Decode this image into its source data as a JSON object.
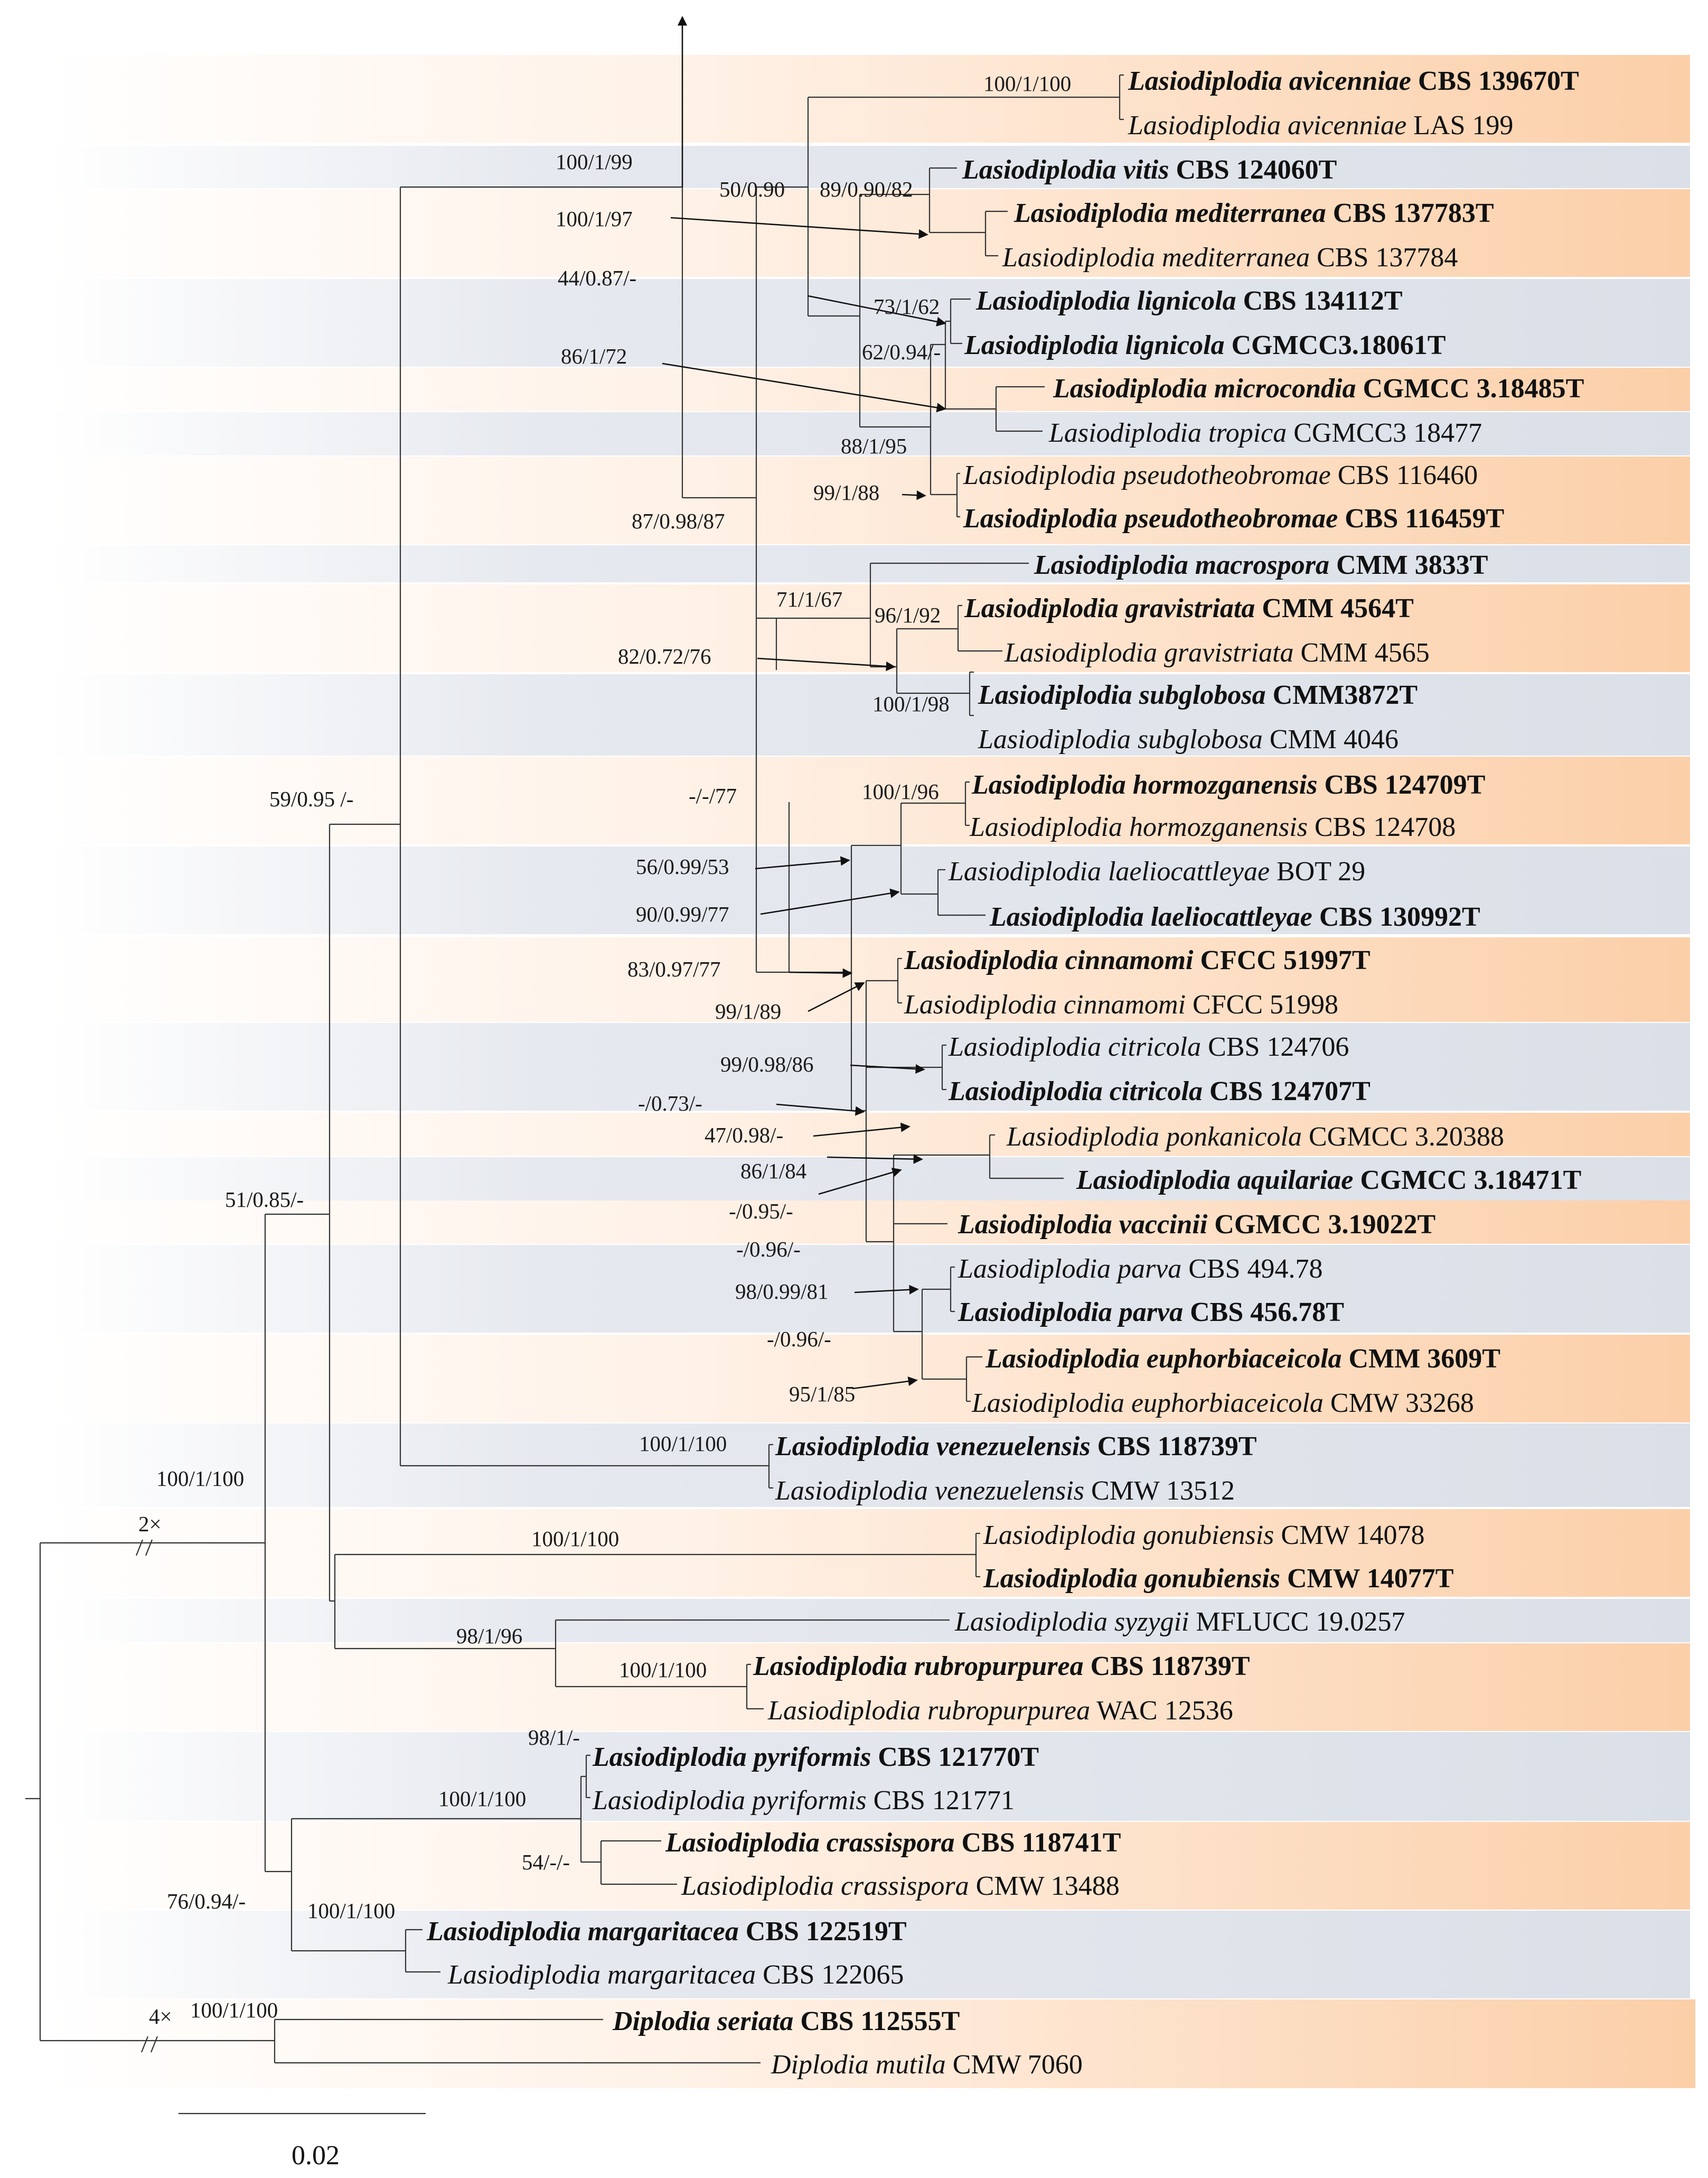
{
  "taxa": [
    {
      "genus": "Lasiodiplodia",
      "species": "avicenniae",
      "strain": "CBS 139670T",
      "type": true
    },
    {
      "genus": "Lasiodiplodia",
      "species": "avicenniae",
      "strain": "LAS 199",
      "type": false
    },
    {
      "genus": "Lasiodiplodia",
      "species": "vitis",
      "strain": "CBS 124060T",
      "type": true
    },
    {
      "genus": "Lasiodiplodia",
      "species": "mediterranea",
      "strain": "CBS 137783T",
      "type": true
    },
    {
      "genus": "Lasiodiplodia",
      "species": "mediterranea",
      "strain": "CBS 137784",
      "type": false
    },
    {
      "genus": "Lasiodiplodia",
      "species": "lignicola",
      "strain": "CBS 134112T",
      "type": true
    },
    {
      "genus": "Lasiodiplodia",
      "species": "lignicola",
      "strain": "CGMCC3.18061T",
      "type": true
    },
    {
      "genus": "Lasiodiplodia",
      "species": "microcondia",
      "strain": "CGMCC 3.18485T",
      "type": true
    },
    {
      "genus": "Lasiodiplodia",
      "species": "tropica",
      "strain": "CGMCC3 18477",
      "type": false
    },
    {
      "genus": "Lasiodiplodia",
      "species": "pseudotheobromae",
      "strain": "CBS 116460",
      "type": false
    },
    {
      "genus": "Lasiodiplodia",
      "species": "pseudotheobromae",
      "strain": "CBS 116459T",
      "type": true
    },
    {
      "genus": "Lasiodiplodia",
      "species": "macrospora",
      "strain": "CMM 3833T",
      "type": true
    },
    {
      "genus": "Lasiodiplodia",
      "species": "gravistriata",
      "strain": "CMM 4564T",
      "type": true
    },
    {
      "genus": "Lasiodiplodia",
      "species": "gravistriata",
      "strain": "CMM 4565",
      "type": false
    },
    {
      "genus": "Lasiodiplodia",
      "species": "subglobosa",
      "strain": "CMM3872T",
      "type": true
    },
    {
      "genus": "Lasiodiplodia",
      "species": "subglobosa",
      "strain": "CMM 4046",
      "type": false
    },
    {
      "genus": "Lasiodiplodia",
      "species": "hormozganensis",
      "strain": "CBS 124709T",
      "type": true
    },
    {
      "genus": "Lasiodiplodia",
      "species": "hormozganensis",
      "strain": "CBS 124708",
      "type": false
    },
    {
      "genus": "Lasiodiplodia",
      "species": "laeliocattleyae",
      "strain": "BOT 29",
      "type": false
    },
    {
      "genus": "Lasiodiplodia",
      "species": "laeliocattleyae",
      "strain": "CBS 130992T",
      "type": true
    },
    {
      "genus": "Lasiodiplodia",
      "species": "cinnamomi",
      "strain": "CFCC 51997T",
      "type": true
    },
    {
      "genus": "Lasiodiplodia",
      "species": "cinnamomi",
      "strain": "CFCC 51998",
      "type": false
    },
    {
      "genus": "Lasiodiplodia",
      "species": "citricola",
      "strain": "CBS 124706",
      "type": false
    },
    {
      "genus": "Lasiodiplodia",
      "species": "citricola",
      "strain": "CBS 124707T",
      "type": true
    },
    {
      "genus": "Lasiodiplodia",
      "species": "ponkanicola",
      "strain": "CGMCC 3.20388",
      "type": false
    },
    {
      "genus": "Lasiodiplodia",
      "species": "aquilariae",
      "strain": "CGMCC 3.18471T",
      "type": true
    },
    {
      "genus": "Lasiodiplodia",
      "species": "vaccinii",
      "strain": "CGMCC 3.19022T",
      "type": true
    },
    {
      "genus": "Lasiodiplodia",
      "species": "parva",
      "strain": "CBS 494.78",
      "type": false
    },
    {
      "genus": "Lasiodiplodia",
      "species": "parva",
      "strain": "CBS 456.78T",
      "type": true
    },
    {
      "genus": "Lasiodiplodia",
      "species": "euphorbiaceicola",
      "strain": "CMM 3609T",
      "type": true
    },
    {
      "genus": "Lasiodiplodia",
      "species": "euphorbiaceicola",
      "strain": "CMW 33268",
      "type": false
    },
    {
      "genus": "Lasiodiplodia",
      "species": "venezuelensis",
      "strain": "CBS 118739T",
      "type": true
    },
    {
      "genus": "Lasiodiplodia",
      "species": "venezuelensis",
      "strain": "CMW 13512",
      "type": false
    },
    {
      "genus": "Lasiodiplodia",
      "species": "gonubiensis",
      "strain": "CMW 14078",
      "type": false
    },
    {
      "genus": "Lasiodiplodia",
      "species": "gonubiensis",
      "strain": "CMW 14077T",
      "type": true
    },
    {
      "genus": "Lasiodiplodia",
      "species": "syzygii",
      "strain": "MFLUCC 19.0257",
      "type": false
    },
    {
      "genus": "Lasiodiplodia",
      "species": "rubropurpurea",
      "strain": "CBS 118739T",
      "type": true
    },
    {
      "genus": "Lasiodiplodia",
      "species": "rubropurpurea",
      "strain": " WAC 12536",
      "type": false
    },
    {
      "genus": "Lasiodiplodia",
      "species": "pyriformis",
      "strain": "CBS 121770T",
      "type": true
    },
    {
      "genus": "Lasiodiplodia",
      "species": "pyriformis",
      "strain": "CBS 121771",
      "type": false
    },
    {
      "genus": "Lasiodiplodia",
      "species": "crassispora",
      "strain": "CBS 118741T",
      "type": true
    },
    {
      "genus": "Lasiodiplodia",
      "species": "crassispora",
      "strain": "CMW 13488",
      "type": false
    },
    {
      "genus": "Lasiodiplodia",
      "species": "margaritacea",
      "strain": "CBS 122519T",
      "type": true
    },
    {
      "genus": "Lasiodiplodia",
      "species": "margaritacea",
      "strain": "CBS 122065",
      "type": false
    },
    {
      "genus": "Diplodia ",
      "species": "seriata",
      "strain": "CBS 112555T",
      "type": true
    },
    {
      "genus": "Diplodia",
      "species": "mutila",
      "strain": "CMW 7060",
      "type": false
    }
  ],
  "support": {
    "s1": "100/1/100",
    "s2": "100/1/99",
    "s3": "50/0.90",
    "s4": "89/0.90/82",
    "s5": "100/1/97",
    "s6": "44/0.87/-",
    "s7": "73/1/62",
    "s8": "62/0.94/-",
    "s9": "86/1/72",
    "s10": "88/1/95",
    "s11": "99/1/88",
    "s12": "87/0.98/87",
    "s13": "71/1/67",
    "s14": "96/1/92",
    "s15": "82/0.72/76",
    "s16": "100/1/98",
    "s17": "59/0.95 /-",
    "s18": "-/-/77",
    "s19": "100/1/96",
    "s20": "56/0.99/53",
    "s21": "90/0.99/77",
    "s22": "83/0.97/77",
    "s23": "99/1/89",
    "s24": "99/0.98/86",
    "s25": "-/0.73/-",
    "s26": "47/0.98/-",
    "s27": "86/1/84",
    "s28": "-/0.95/-",
    "s29": "-/0.96/-",
    "s30": "98/0.99/81",
    "s31": "-/0.96/-",
    "s32": "95/1/85",
    "s33": "51/0.85/-",
    "s34": "100/1/100",
    "s35": "100/1/100",
    "s36": "100/1/100",
    "s37": "98/1/96",
    "s38": "100/1/100",
    "s39": "98/1/-",
    "s40": "100/1/100",
    "s41": "54/-/-",
    "s42": "76/0.94/-",
    "s43": "100/1/100",
    "s44": "100/1/100"
  },
  "breaks": {
    "b1": "2×",
    "b2": "4×"
  },
  "scale_bar": {
    "value": 0.02,
    "label": "0.02"
  },
  "colors": {
    "orange": "#fbd3b3",
    "blue": "#dde2ea",
    "line": "#333333"
  }
}
